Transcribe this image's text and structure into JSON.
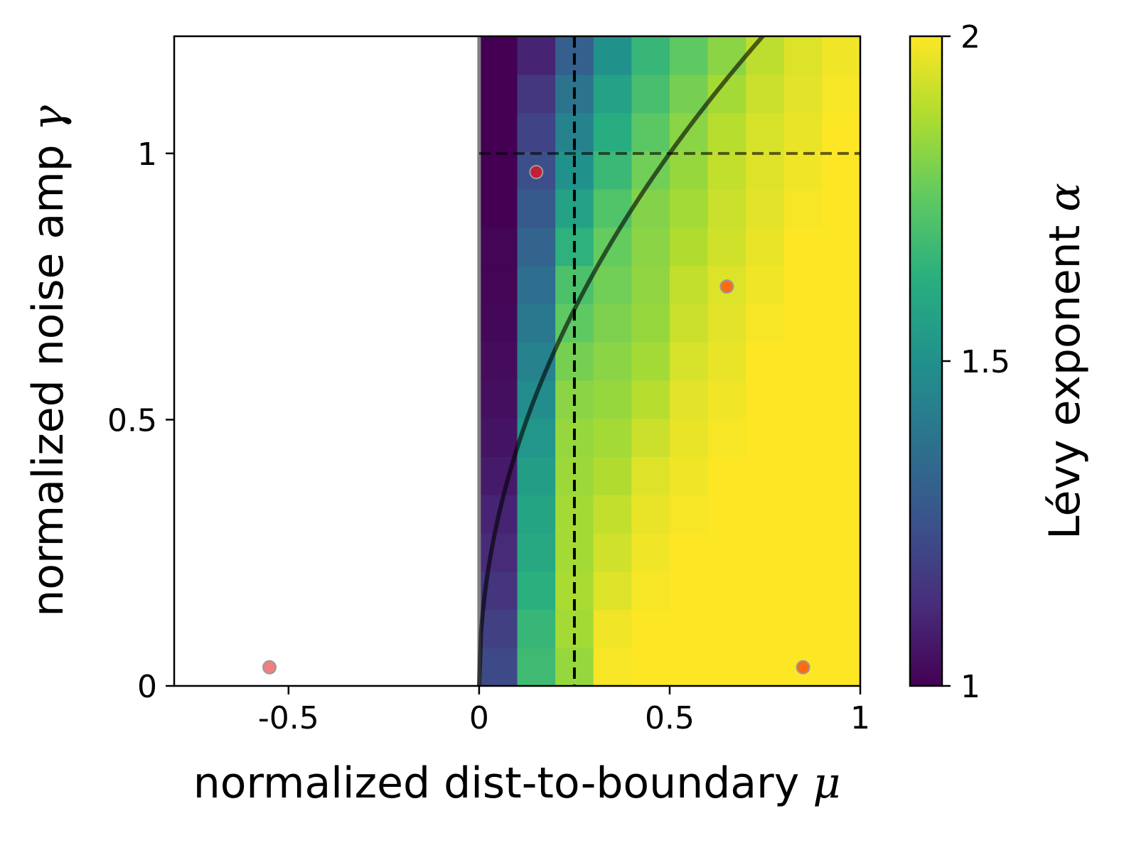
{
  "chart_data": {
    "type": "heatmap",
    "xlabel": "normalized dist-to-boundary",
    "xlabel_symbol": "μ",
    "ylabel": "normalized noise amp",
    "ylabel_symbol": "γ",
    "colorbar_label": "Lévy exponent",
    "colorbar_symbol": "α",
    "colormap": "viridis",
    "xlim": [
      -0.8,
      1.0
    ],
    "ylim": [
      0,
      1.22
    ],
    "clim": [
      1,
      2
    ],
    "x_ticks": [
      -0.5,
      0,
      0.5,
      1
    ],
    "x_tick_labels": [
      "-0.5",
      "0",
      "0.5",
      "1"
    ],
    "y_ticks": [
      0,
      0.5,
      1
    ],
    "y_tick_labels": [
      "0",
      "0.5",
      "1"
    ],
    "colorbar_ticks": [
      1,
      1.5,
      2
    ],
    "colorbar_tick_labels": [
      "1",
      "1.5",
      "2"
    ],
    "grid": false,
    "heatmap": {
      "x_edges": [
        0,
        0.1,
        0.2,
        0.3,
        0.4,
        0.5,
        0.6,
        0.7,
        0.8,
        0.9,
        1.0
      ],
      "y_edges": [
        0,
        0.0718,
        0.1435,
        0.2153,
        0.2871,
        0.3588,
        0.4306,
        0.5024,
        0.5741,
        0.6459,
        0.7176,
        0.7894,
        0.8612,
        0.9329,
        1.0047,
        1.0765,
        1.1482,
        1.22
      ],
      "values": [
        [
          1.22,
          1.68,
          1.84,
          1.99,
          2.0,
          2.0,
          2.0,
          2.0,
          2.0,
          2.0
        ],
        [
          1.19,
          1.66,
          1.86,
          1.98,
          2.0,
          2.0,
          2.0,
          2.0,
          2.0,
          2.0
        ],
        [
          1.15,
          1.63,
          1.87,
          1.95,
          1.99,
          2.0,
          2.0,
          2.0,
          2.0,
          2.0
        ],
        [
          1.12,
          1.6,
          1.86,
          1.93,
          1.98,
          2.0,
          2.0,
          2.0,
          2.0,
          2.0
        ],
        [
          1.1,
          1.58,
          1.86,
          1.91,
          1.97,
          1.99,
          2.0,
          2.0,
          2.0,
          2.0
        ],
        [
          1.07,
          1.55,
          1.85,
          1.88,
          1.95,
          1.98,
          2.0,
          2.0,
          2.0,
          2.0
        ],
        [
          1.05,
          1.52,
          1.84,
          1.86,
          1.92,
          1.97,
          1.99,
          2.0,
          2.0,
          2.0
        ],
        [
          1.04,
          1.48,
          1.82,
          1.84,
          1.89,
          1.96,
          1.98,
          2.0,
          2.0,
          2.0
        ],
        [
          1.03,
          1.44,
          1.79,
          1.82,
          1.86,
          1.94,
          1.97,
          2.0,
          2.0,
          2.0
        ],
        [
          1.02,
          1.4,
          1.75,
          1.8,
          1.84,
          1.92,
          1.96,
          1.99,
          2.0,
          2.0
        ],
        [
          1.01,
          1.36,
          1.71,
          1.78,
          1.83,
          1.91,
          1.95,
          1.98,
          2.0,
          2.0
        ],
        [
          1.01,
          1.32,
          1.64,
          1.76,
          1.82,
          1.88,
          1.93,
          1.97,
          2.0,
          2.0
        ],
        [
          1.0,
          1.28,
          1.57,
          1.72,
          1.81,
          1.86,
          1.92,
          1.96,
          1.99,
          2.0
        ],
        [
          1.0,
          1.24,
          1.5,
          1.67,
          1.78,
          1.84,
          1.91,
          1.95,
          1.98,
          2.0
        ],
        [
          1.0,
          1.2,
          1.44,
          1.62,
          1.74,
          1.82,
          1.89,
          1.94,
          1.97,
          2.0
        ],
        [
          1.0,
          1.16,
          1.38,
          1.57,
          1.7,
          1.79,
          1.86,
          1.92,
          1.96,
          1.99
        ],
        [
          1.0,
          1.1,
          1.3,
          1.5,
          1.66,
          1.75,
          1.82,
          1.9,
          1.95,
          1.98
        ]
      ]
    },
    "overlays": {
      "vertical_solid_line_x": 0,
      "vertical_dashed_line_x": 0.25,
      "horizontal_dashed_line_y": 1.0,
      "curve": "gamma = sqrt(2*mu)"
    },
    "points": [
      {
        "x": -0.55,
        "y": 0.035,
        "color": "#f08080"
      },
      {
        "x": 0.15,
        "y": 0.965,
        "color": "#c41e3a"
      },
      {
        "x": 0.65,
        "y": 0.75,
        "color": "#ff6a13"
      },
      {
        "x": 0.85,
        "y": 0.035,
        "color": "#ff6a13"
      }
    ]
  }
}
